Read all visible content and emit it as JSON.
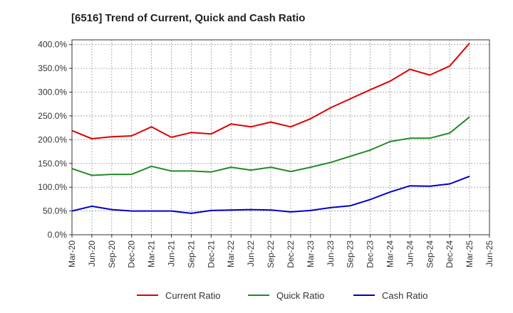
{
  "chart_data": {
    "type": "line",
    "title": "[6516]  Trend of Current, Quick and Cash Ratio",
    "xlabel": "",
    "ylabel": "",
    "ylim": [
      0,
      410
    ],
    "y_ticks": [
      "0.0%",
      "50.0%",
      "100.0%",
      "150.0%",
      "200.0%",
      "250.0%",
      "300.0%",
      "350.0%",
      "400.0%"
    ],
    "y_tick_values": [
      0,
      50,
      100,
      150,
      200,
      250,
      300,
      350,
      400
    ],
    "x_tick_labels": [
      "Mar-20",
      "Jun-20",
      "Sep-20",
      "Dec-20",
      "Mar-21",
      "Jun-21",
      "Sep-21",
      "Dec-21",
      "Mar-22",
      "Jun-22",
      "Sep-22",
      "Dec-22",
      "Mar-23",
      "Jun-23",
      "Sep-23",
      "Dec-23",
      "Mar-24",
      "Jun-24",
      "Sep-24",
      "Dec-24",
      "Mar-25",
      "Jun-25"
    ],
    "grid": true,
    "legend_position": "bottom",
    "series": [
      {
        "name": "Current Ratio",
        "color": "#e00000",
        "values": [
          219,
          202,
          206,
          208,
          227,
          205,
          215,
          212,
          233,
          227,
          237,
          227,
          244,
          267,
          286,
          305,
          323,
          348,
          336,
          355,
          403
        ]
      },
      {
        "name": "Quick Ratio",
        "color": "#228b22",
        "values": [
          139,
          125,
          127,
          127,
          144,
          134,
          134,
          132,
          142,
          136,
          142,
          133,
          142,
          152,
          165,
          178,
          196,
          203,
          203,
          214,
          248
        ]
      },
      {
        "name": "Cash Ratio",
        "color": "#0000cc",
        "values": [
          50,
          60,
          53,
          50,
          50,
          50,
          45,
          51,
          52,
          53,
          52,
          48,
          51,
          57,
          61,
          74,
          90,
          103,
          102,
          107,
          123
        ]
      }
    ]
  }
}
